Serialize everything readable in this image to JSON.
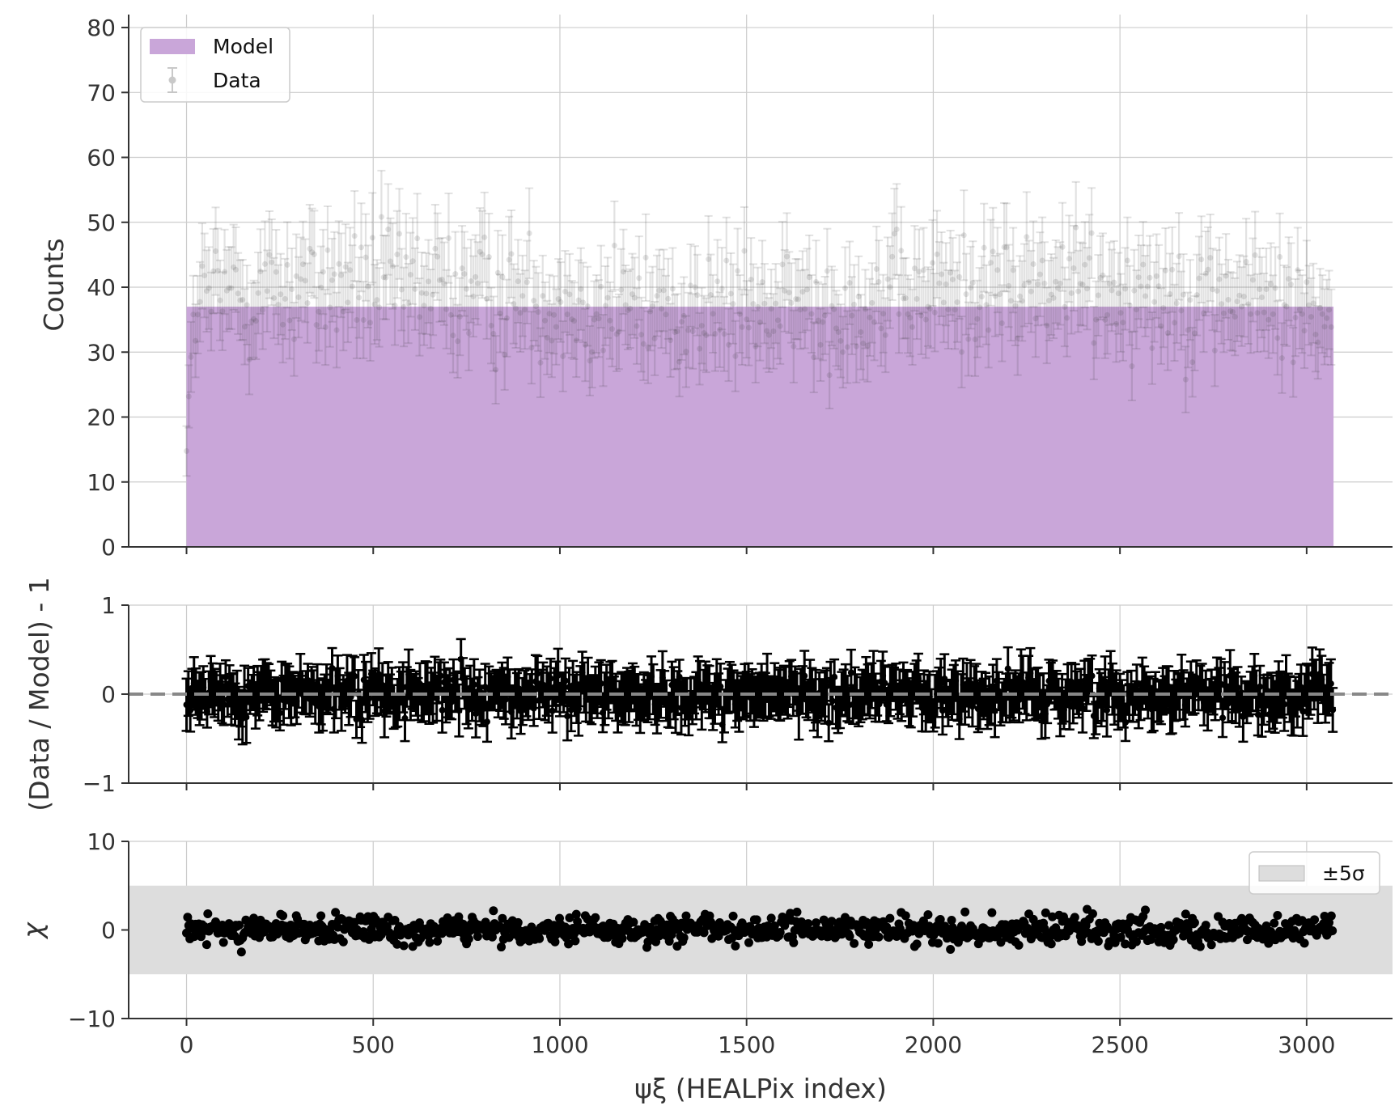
{
  "chart_data": [
    {
      "type": "bar",
      "panel": "counts",
      "ylabel": "Counts",
      "xlim": [
        -155,
        3230
      ],
      "ylim": [
        0,
        82
      ],
      "x_ticks": [
        0,
        500,
        1000,
        1500,
        2000,
        2500,
        3000
      ],
      "y_ticks": [
        0,
        10,
        20,
        30,
        40,
        50,
        60,
        70,
        80
      ],
      "y_tick_labels": [
        "0",
        "10",
        "20",
        "30",
        "40",
        "50",
        "60",
        "70",
        "80"
      ],
      "grid": true,
      "legend_position": "top-left",
      "pixel_count": 3072,
      "series": [
        {
          "name": "Model",
          "kind": "histogram-fill",
          "color": "#c9a6d9",
          "level_start": 15,
          "level": 37,
          "level_end": 30
        },
        {
          "name": "Data",
          "kind": "errorbar",
          "color": "#333333",
          "mean": 38,
          "typical_range": [
            20,
            70
          ],
          "error": "sqrt(counts)"
        }
      ]
    },
    {
      "type": "scatter",
      "panel": "ratio",
      "ylabel": "(Data / Model) - 1",
      "ylim": [
        -1,
        1
      ],
      "y_ticks": [
        -1,
        0,
        1
      ],
      "y_tick_labels": [
        "−1",
        "0",
        "1"
      ],
      "grid": true,
      "reference_line": 0,
      "series": [
        {
          "kind": "errorbar",
          "color": "#000000",
          "typical_range": [
            -0.5,
            0.9
          ]
        }
      ]
    },
    {
      "type": "scatter",
      "panel": "chi",
      "ylabel": "χ",
      "ylim": [
        -10,
        10
      ],
      "y_ticks": [
        -10,
        0,
        10
      ],
      "y_tick_labels": [
        "−10",
        "0",
        "10"
      ],
      "grid": true,
      "legend_position": "top-right",
      "band": {
        "name": "±5σ",
        "low": -5,
        "high": 5,
        "color": "#dddddd"
      },
      "series": [
        {
          "kind": "points",
          "color": "#000000",
          "typical_range": [
            -4.5,
            4
          ]
        }
      ]
    }
  ],
  "x_tick_labels": [
    "0",
    "500",
    "1000",
    "1500",
    "2000",
    "2500",
    "3000"
  ],
  "xlabel": "ψξ (HEALPix index)",
  "colors": {
    "axis": "#333333",
    "grid": "#cccccc",
    "model": "#c9a6d9",
    "dashed_line": "#888888"
  }
}
